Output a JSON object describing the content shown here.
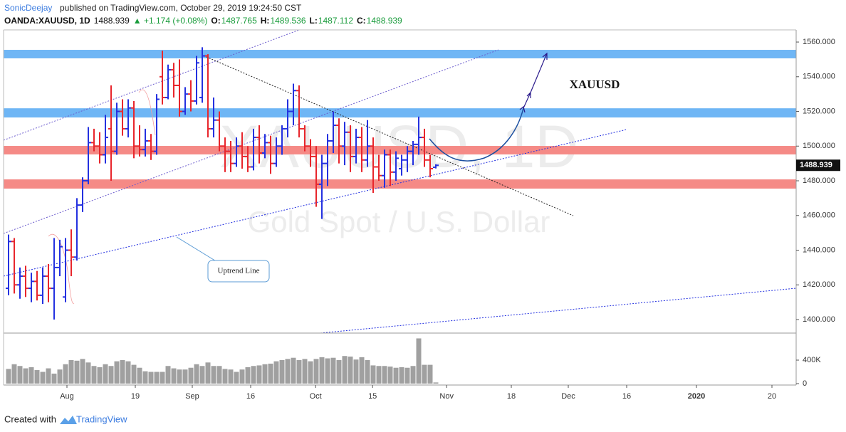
{
  "header": {
    "author": "SonicDeejay",
    "published": "published on TradingView.com, October 29, 2019 19:24:50 CST",
    "symbol": "OANDA:XAUUSD, 1D",
    "price": "1488.939",
    "change": "▲ +1.174 (+0.08%)",
    "ohlc": [
      {
        "label": "O:",
        "value": "1487.765"
      },
      {
        "label": "H:",
        "value": "1489.536"
      },
      {
        "label": "L:",
        "value": "1487.112"
      },
      {
        "label": "C:",
        "value": "1488.939"
      }
    ]
  },
  "chart_data": {
    "type": "ohlc",
    "watermark": "XAUUSD, 1D",
    "subtitle": "Gold Spot / U.S. Dollar",
    "annotations": [
      "XAUUSD",
      "Uptrend Line"
    ],
    "up_color": "#2431e0",
    "down_color": "#e8262c",
    "volume_color": "#a0a0a0",
    "open": [
      1418,
      1445,
      1420,
      1425,
      1418,
      1422,
      1414,
      1425,
      1418,
      1430,
      1413,
      1440,
      1436,
      1466,
      1480,
      1502,
      1500,
      1495,
      1510,
      1497,
      1520,
      1510,
      1522,
      1500,
      1498,
      1503,
      1497,
      1540,
      1528,
      1544,
      1535,
      1520,
      1530,
      1526,
      1528,
      1552,
      1510,
      1515,
      1500,
      1497,
      1490,
      1500,
      1494,
      1488,
      1505,
      1496,
      1502,
      1490,
      1500,
      1510,
      1520,
      1532,
      1510,
      1500,
      1494,
      1478,
      1490,
      1503,
      1512,
      1500,
      1508,
      1494,
      1505,
      1492,
      1500,
      1488,
      1483,
      1495,
      1485,
      1487,
      1492,
      1497,
      1501,
      1505,
      1492,
      1487.765
    ],
    "high": [
      1449,
      1447,
      1430,
      1431,
      1427,
      1428,
      1430,
      1432,
      1447,
      1446,
      1447,
      1452,
      1470,
      1482,
      1511,
      1510,
      1508,
      1518,
      1535,
      1525,
      1527,
      1527,
      1526,
      1512,
      1510,
      1507,
      1530,
      1555,
      1547,
      1548,
      1550,
      1534,
      1538,
      1552,
      1557,
      1553,
      1528,
      1520,
      1505,
      1503,
      1505,
      1508,
      1500,
      1510,
      1512,
      1507,
      1506,
      1505,
      1512,
      1527,
      1536,
      1535,
      1512,
      1504,
      1500,
      1495,
      1507,
      1520,
      1516,
      1514,
      1512,
      1510,
      1511,
      1515,
      1505,
      1495,
      1498,
      1498,
      1497,
      1495,
      1500,
      1503,
      1517,
      1510,
      1495,
      1489.536
    ],
    "low": [
      1414,
      1415,
      1412,
      1413,
      1410,
      1411,
      1409,
      1410,
      1400,
      1425,
      1410,
      1425,
      1434,
      1462,
      1478,
      1497,
      1490,
      1490,
      1480,
      1495,
      1506,
      1505,
      1493,
      1494,
      1494,
      1492,
      1495,
      1524,
      1527,
      1528,
      1517,
      1518,
      1520,
      1524,
      1525,
      1505,
      1505,
      1497,
      1485,
      1485,
      1488,
      1487,
      1485,
      1486,
      1490,
      1493,
      1484,
      1488,
      1495,
      1505,
      1512,
      1505,
      1497,
      1488,
      1465,
      1458,
      1477,
      1496,
      1490,
      1489,
      1485,
      1490,
      1485,
      1488,
      1473,
      1480,
      1476,
      1477,
      1480,
      1483,
      1485,
      1489,
      1495,
      1488,
      1482,
      1487.112
    ],
    "close": [
      1445,
      1420,
      1425,
      1418,
      1422,
      1414,
      1425,
      1418,
      1430,
      1442,
      1440,
      1436,
      1466,
      1480,
      1502,
      1500,
      1495,
      1505,
      1497,
      1520,
      1510,
      1522,
      1500,
      1498,
      1503,
      1497,
      1527,
      1528,
      1544,
      1535,
      1520,
      1530,
      1526,
      1548,
      1552,
      1510,
      1515,
      1500,
      1497,
      1490,
      1500,
      1494,
      1488,
      1505,
      1496,
      1502,
      1490,
      1500,
      1510,
      1520,
      1532,
      1510,
      1500,
      1494,
      1478,
      1490,
      1503,
      1512,
      1500,
      1508,
      1494,
      1505,
      1492,
      1500,
      1488,
      1483,
      1495,
      1485,
      1493,
      1492,
      1497,
      1501,
      1505,
      1492,
      1487,
      1488.939
    ],
    "volume": [
      250000,
      330000,
      300000,
      260000,
      280000,
      230000,
      200000,
      260000,
      170000,
      240000,
      330000,
      400000,
      390000,
      420000,
      360000,
      300000,
      280000,
      330000,
      300000,
      380000,
      400000,
      380000,
      320000,
      270000,
      210000,
      200000,
      200000,
      200000,
      300000,
      260000,
      240000,
      240000,
      270000,
      330000,
      300000,
      360000,
      300000,
      300000,
      250000,
      240000,
      200000,
      240000,
      280000,
      300000,
      310000,
      330000,
      340000,
      380000,
      400000,
      420000,
      440000,
      400000,
      420000,
      380000,
      420000,
      450000,
      430000,
      440000,
      400000,
      470000,
      460000,
      410000,
      450000,
      400000,
      310000,
      300000,
      300000,
      290000,
      270000,
      280000,
      270000,
      300000,
      770000,
      320000,
      320000,
      20000
    ],
    "last": 1488.939,
    "last_label": "1488.939",
    "zones": [
      {
        "from": 1550.6,
        "to": 1555.5,
        "color": "#6fb6f5"
      },
      {
        "from": 1516.5,
        "to": 1521.8,
        "color": "#6fb6f5"
      },
      {
        "from": 1495.2,
        "to": 1500.1,
        "color": "#f58a86"
      },
      {
        "from": 1475.5,
        "to": 1480.8,
        "color": "#f58a86"
      }
    ],
    "ylim": [
      1392.2,
      1567
    ],
    "yticks": [
      {
        "value": 1400,
        "label": "1400.000"
      },
      {
        "value": 1420,
        "label": "1420.000"
      },
      {
        "value": 1440,
        "label": "1440.000"
      },
      {
        "value": 1460,
        "label": "1460.000"
      },
      {
        "value": 1480,
        "label": "1480.000"
      },
      {
        "value": 1500,
        "label": "1500.000"
      },
      {
        "value": 1520,
        "label": "1520.000"
      },
      {
        "value": 1540,
        "label": "1540.000"
      },
      {
        "value": 1560,
        "label": "1560.000"
      }
    ],
    "vlim": [
      0,
      812000
    ],
    "vticks": [
      0,
      {
        "value": 400000,
        "label": "400K"
      }
    ],
    "xlim": [
      -0.875,
      138.25
    ],
    "xticks": [
      {
        "value": 10.25,
        "label": "Aug"
      },
      {
        "value": 22.25,
        "label": "19"
      },
      {
        "value": 32.25,
        "label": "Sep"
      },
      {
        "value": 42.5,
        "label": "16"
      },
      {
        "value": 53.9,
        "label": "Oct"
      },
      {
        "value": 63.9,
        "label": "15"
      },
      {
        "value": 76.9,
        "label": "Nov"
      },
      {
        "value": 88.25,
        "label": "18"
      },
      {
        "value": 98.25,
        "label": "Dec"
      },
      {
        "value": 108.5,
        "label": "16"
      },
      {
        "value": 120.75,
        "label": "2020"
      },
      {
        "value": 134,
        "label": "20"
      }
    ]
  },
  "footer": {
    "text": "Created with",
    "brand": "TradingView"
  }
}
